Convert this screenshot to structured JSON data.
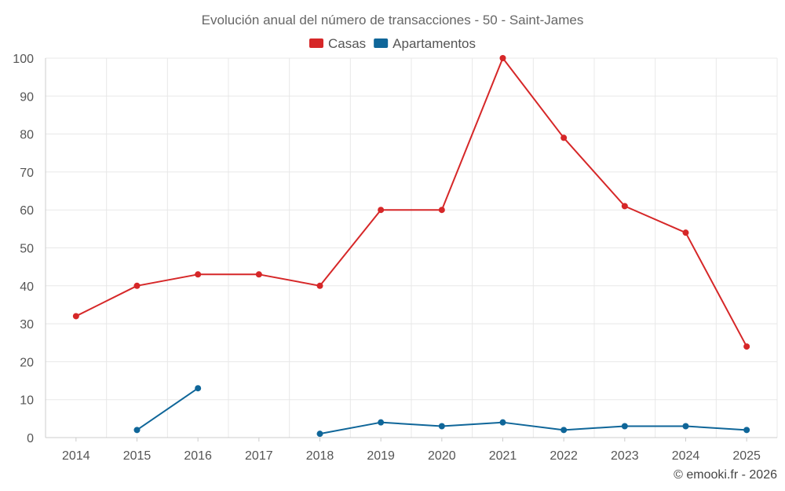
{
  "chart_data": {
    "type": "line",
    "title": "Evolución anual del número de transacciones - 50 - Saint-James",
    "categories": [
      "2014",
      "2015",
      "2016",
      "2017",
      "2018",
      "2019",
      "2020",
      "2021",
      "2022",
      "2023",
      "2024",
      "2025"
    ],
    "series": [
      {
        "name": "Casas",
        "color": "#d62728",
        "values": [
          32,
          40,
          43,
          43,
          40,
          60,
          60,
          100,
          79,
          61,
          54,
          24
        ]
      },
      {
        "name": "Apartamentos",
        "color": "#0f6699",
        "values": [
          null,
          2,
          13,
          null,
          1,
          4,
          3,
          4,
          2,
          3,
          3,
          2
        ]
      }
    ],
    "ylim": [
      0,
      100
    ],
    "yticks": [
      0,
      10,
      20,
      30,
      40,
      50,
      60,
      70,
      80,
      90,
      100
    ],
    "xlabel": "",
    "ylabel": "",
    "grid": true,
    "legend_position": "top-center"
  },
  "credit": "© emooki.fr - 2026"
}
